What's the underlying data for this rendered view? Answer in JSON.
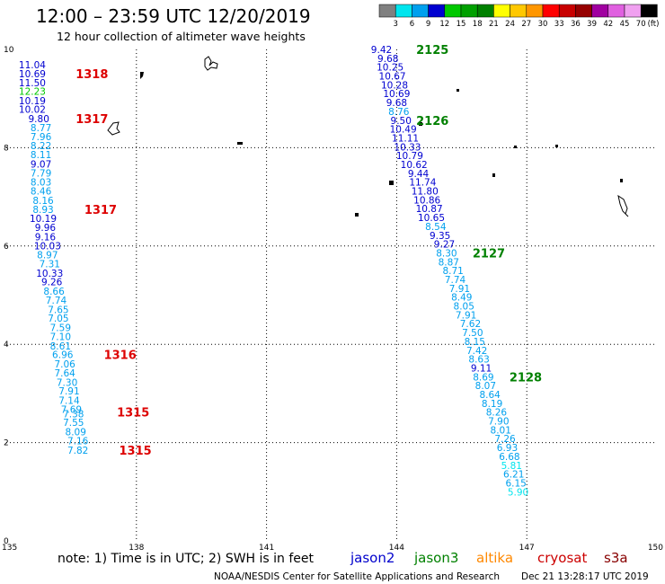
{
  "title": "12:00 – 23:59 UTC 12/20/2019",
  "subtitle": "12 hour collection of altimeter wave heights",
  "note": "note: 1) Time is in UTC; 2) SWH is in feet",
  "credit": "NOAA/NESDIS Center for Satellite Applications and Research",
  "timestamp": "Dec 21 13:28:17 UTC 2019",
  "satellites": [
    {
      "name": "jason2",
      "color": "#0000cc"
    },
    {
      "name": "jason3",
      "color": "#008000"
    },
    {
      "name": "altika",
      "color": "#ff8800"
    },
    {
      "name": "cryosat",
      "color": "#cc0000"
    },
    {
      "name": "s3a",
      "color": "#880000"
    }
  ],
  "colorbar": {
    "unit": "(ft)",
    "labels": [
      "3",
      "6",
      "9",
      "12",
      "15",
      "18",
      "21",
      "24",
      "27",
      "30",
      "33",
      "36",
      "39",
      "42",
      "45",
      "70"
    ],
    "colors": [
      "#808080",
      "#00e5ee",
      "#00a0ee",
      "#0000d0",
      "#00c800",
      "#00a000",
      "#008000",
      "#ffff00",
      "#ffc800",
      "#ff9600",
      "#ff0000",
      "#c80000",
      "#960000",
      "#a000a0",
      "#e060e0",
      "#f0a0f0",
      "#000000"
    ]
  },
  "chart_data": {
    "type": "scatter",
    "xlim": [
      135,
      150
    ],
    "ylim": [
      0,
      10
    ],
    "x_ticks": [
      135,
      138,
      141,
      144,
      147,
      150
    ],
    "y_ticks": [
      0,
      2,
      4,
      6,
      8,
      10
    ],
    "grid": true,
    "tracks": [
      {
        "values": [
          [
            135.6,
            9.69,
            "11.04"
          ],
          [
            135.6,
            9.51,
            "10.69"
          ],
          [
            135.6,
            9.32,
            "11.50"
          ],
          [
            135.6,
            9.15,
            "12.23"
          ],
          [
            135.6,
            8.96,
            "10.19"
          ],
          [
            135.6,
            8.78,
            "10.02"
          ],
          [
            135.75,
            8.59,
            "9.80"
          ],
          [
            135.8,
            8.41,
            "8.77"
          ],
          [
            135.8,
            8.23,
            "7.96"
          ],
          [
            135.8,
            8.04,
            "8.22"
          ],
          [
            135.8,
            7.86,
            "8.11"
          ],
          [
            135.8,
            7.67,
            "9.07"
          ],
          [
            135.8,
            7.49,
            "7.79"
          ],
          [
            135.8,
            7.3,
            "8.03"
          ],
          [
            135.8,
            7.12,
            "8.46"
          ],
          [
            135.85,
            6.93,
            "8.16"
          ],
          [
            135.85,
            6.75,
            "8.93"
          ],
          [
            135.85,
            6.56,
            "10.19"
          ],
          [
            135.9,
            6.38,
            "9.96"
          ],
          [
            135.9,
            6.19,
            "9.16"
          ],
          [
            135.95,
            6.01,
            "10.03"
          ],
          [
            135.95,
            5.82,
            "8.97"
          ],
          [
            136.0,
            5.64,
            "7.31"
          ],
          [
            136.0,
            5.45,
            "10.33"
          ],
          [
            136.05,
            5.27,
            "9.26"
          ],
          [
            136.1,
            5.08,
            "8.66"
          ],
          [
            136.15,
            4.9,
            "7.74"
          ],
          [
            136.2,
            4.71,
            "7.65"
          ],
          [
            136.2,
            4.53,
            "7.05"
          ],
          [
            136.25,
            4.34,
            "7.59"
          ],
          [
            136.25,
            4.16,
            "7.10"
          ],
          [
            136.25,
            3.97,
            "8.61"
          ],
          [
            136.3,
            3.79,
            "6.96"
          ],
          [
            136.35,
            3.6,
            "7.06"
          ],
          [
            136.35,
            3.42,
            "7.64"
          ],
          [
            136.4,
            3.23,
            "7.30"
          ],
          [
            136.45,
            3.05,
            "7.91"
          ],
          [
            136.45,
            2.86,
            "7.14"
          ],
          [
            136.5,
            2.68,
            "7.69"
          ],
          [
            136.55,
            2.59,
            "7.38"
          ],
          [
            136.55,
            2.41,
            "7.55"
          ],
          [
            136.6,
            2.22,
            "8.09"
          ],
          [
            136.65,
            2.04,
            "7.16"
          ],
          [
            136.65,
            1.85,
            "7.82"
          ]
        ],
        "labels": [
          {
            "text": "1318",
            "x": 136.6,
            "y": 9.51
          },
          {
            "text": "1317",
            "x": 136.6,
            "y": 8.59
          },
          {
            "text": "1317",
            "x": 136.8,
            "y": 6.75
          },
          {
            "text": "1316",
            "x": 137.25,
            "y": 3.79
          },
          {
            "text": "1315",
            "x": 137.55,
            "y": 2.62
          },
          {
            "text": "1315",
            "x": 137.6,
            "y": 1.85
          }
        ]
      },
      {
        "values": [
          [
            143.65,
            10.0,
            "9.42"
          ],
          [
            143.8,
            9.82,
            "9.68"
          ],
          [
            143.85,
            9.64,
            "10.25"
          ],
          [
            143.9,
            9.46,
            "10.67"
          ],
          [
            143.95,
            9.28,
            "10.28"
          ],
          [
            144.0,
            9.1,
            "10.69"
          ],
          [
            144.0,
            8.92,
            "9.68"
          ],
          [
            144.05,
            8.74,
            "8.76"
          ],
          [
            144.1,
            8.56,
            "9.50"
          ],
          [
            144.15,
            8.38,
            "10.49"
          ],
          [
            144.2,
            8.2,
            "11.11"
          ],
          [
            144.25,
            8.02,
            "10.33"
          ],
          [
            144.3,
            7.84,
            "10.79"
          ],
          [
            144.4,
            7.66,
            "10.62"
          ],
          [
            144.5,
            7.48,
            "9.44"
          ],
          [
            144.6,
            7.3,
            "11.74"
          ],
          [
            144.65,
            7.12,
            "11.80"
          ],
          [
            144.7,
            6.94,
            "10.86"
          ],
          [
            144.75,
            6.76,
            "10.87"
          ],
          [
            144.8,
            6.58,
            "10.65"
          ],
          [
            144.9,
            6.4,
            "8.54"
          ],
          [
            145.0,
            6.22,
            "9.35"
          ],
          [
            145.1,
            6.04,
            "9.27"
          ],
          [
            145.15,
            5.86,
            "8.30"
          ],
          [
            145.2,
            5.68,
            "8.87"
          ],
          [
            145.3,
            5.5,
            "8.71"
          ],
          [
            145.35,
            5.32,
            "7.74"
          ],
          [
            145.45,
            5.14,
            "7.91"
          ],
          [
            145.5,
            4.96,
            "8.49"
          ],
          [
            145.55,
            4.78,
            "8.05"
          ],
          [
            145.6,
            4.6,
            "7.91"
          ],
          [
            145.7,
            4.42,
            "7.62"
          ],
          [
            145.75,
            4.24,
            "7.50"
          ],
          [
            145.8,
            4.06,
            "8.15"
          ],
          [
            145.85,
            3.88,
            "7.42"
          ],
          [
            145.9,
            3.7,
            "8.63"
          ],
          [
            145.95,
            3.52,
            "9.11"
          ],
          [
            146.0,
            3.34,
            "8.69"
          ],
          [
            146.05,
            3.16,
            "8.07"
          ],
          [
            146.15,
            2.98,
            "8.64"
          ],
          [
            146.2,
            2.8,
            "8.19"
          ],
          [
            146.3,
            2.62,
            "8.26"
          ],
          [
            146.35,
            2.44,
            "7.90"
          ],
          [
            146.4,
            2.26,
            "8.01"
          ],
          [
            146.5,
            2.08,
            "7.26"
          ],
          [
            146.55,
            1.9,
            "6.93"
          ],
          [
            146.6,
            1.72,
            "6.68"
          ],
          [
            146.65,
            1.54,
            "5.81"
          ],
          [
            146.7,
            1.36,
            "6.21"
          ],
          [
            146.75,
            1.18,
            "6.15"
          ],
          [
            146.8,
            1.0,
            "5.90"
          ]
        ],
        "labels": [
          {
            "text": "2125",
            "x": 144.45,
            "y": 10.0
          },
          {
            "text": "2126",
            "x": 144.45,
            "y": 8.56
          },
          {
            "text": "2127",
            "x": 145.75,
            "y": 5.86
          },
          {
            "text": "2128",
            "x": 146.6,
            "y": 3.34
          }
        ]
      }
    ]
  }
}
